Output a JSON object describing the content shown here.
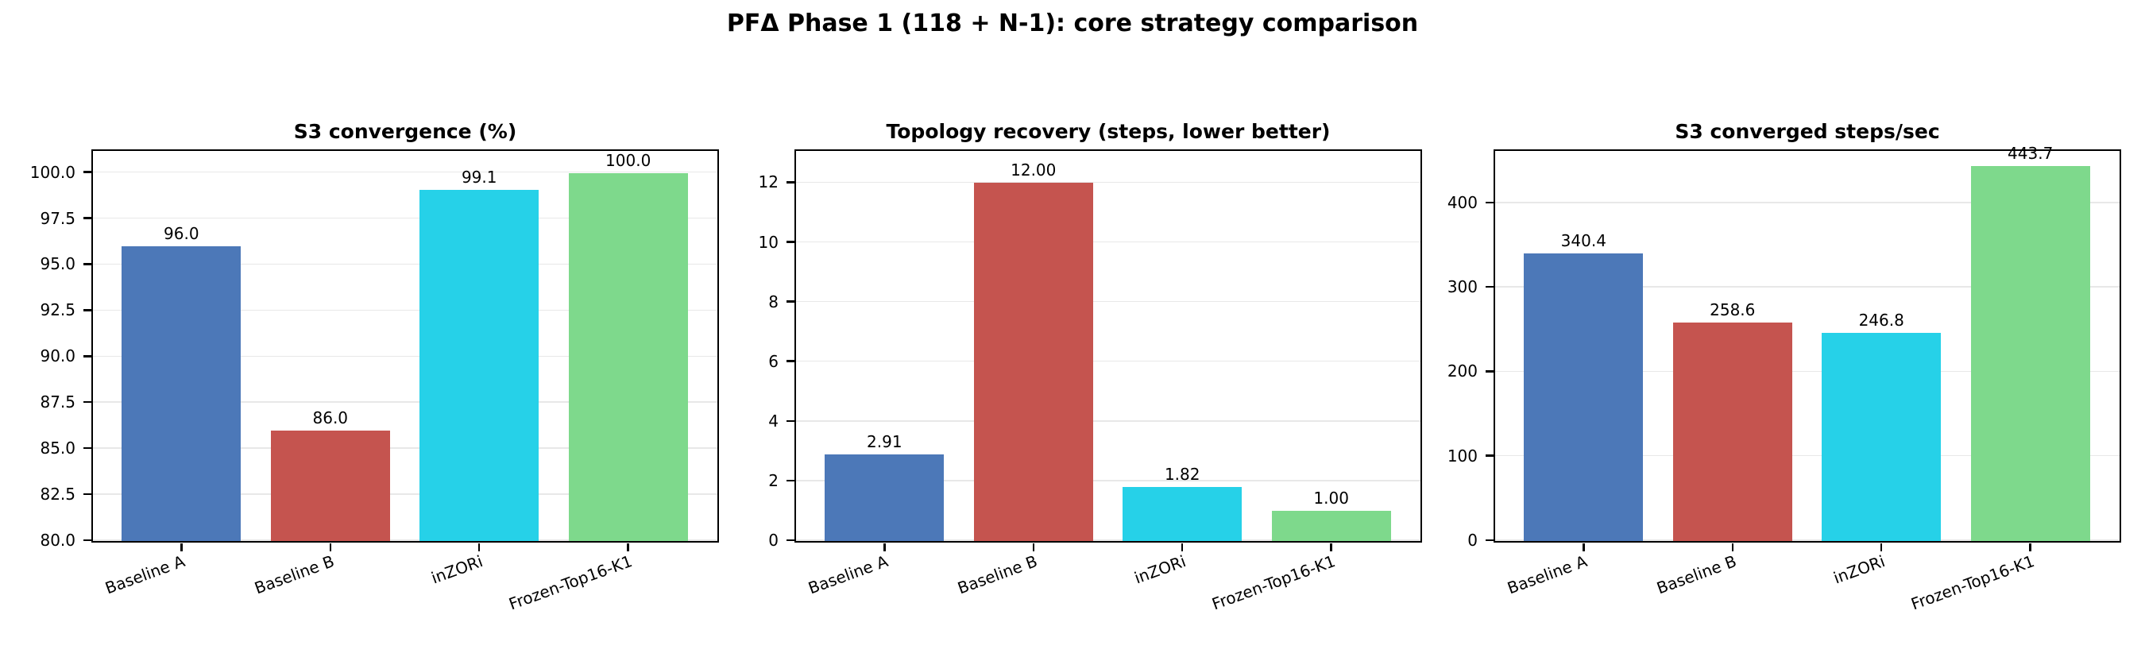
{
  "figure": {
    "title": "PFΔ Phase 1 (118 + N-1): core strategy comparison",
    "background_color": "#ffffff",
    "text_color": "#000000"
  },
  "style": {
    "bar_palette": [
      "#4C78B8",
      "#C5544F",
      "#26D1E8",
      "#7ED98C"
    ],
    "grid_color": "#e8e8e8",
    "spine_color": "#000000"
  },
  "chart_data": [
    {
      "type": "bar",
      "title": "S3 convergence (%)",
      "categories": [
        "Baseline A",
        "Baseline B",
        "inZORi",
        "Frozen-Top16-K1"
      ],
      "values": [
        96.0,
        86.0,
        99.1,
        100.0
      ],
      "bar_labels": [
        "96.0",
        "86.0",
        "99.1",
        "100.0"
      ],
      "bar_colors": [
        "#4C78B8",
        "#C5544F",
        "#26D1E8",
        "#7ED98C"
      ],
      "xlabel": "",
      "ylabel": "",
      "ylim": [
        80,
        101.15
      ],
      "yticks": [
        80.0,
        82.5,
        85.0,
        87.5,
        90.0,
        92.5,
        95.0,
        97.5,
        100.0
      ],
      "ytick_labels": [
        "80.0",
        "82.5",
        "85.0",
        "87.5",
        "90.0",
        "92.5",
        "95.0",
        "97.5",
        "100.0"
      ],
      "grid": true,
      "legend": null,
      "xtick_rotation_deg": 20
    },
    {
      "type": "bar",
      "title": "Topology recovery (steps, lower better)",
      "categories": [
        "Baseline A",
        "Baseline B",
        "inZORi",
        "Frozen-Top16-K1"
      ],
      "values": [
        2.91,
        12.0,
        1.82,
        1.0
      ],
      "bar_labels": [
        "2.91",
        "12.00",
        "1.82",
        "1.00"
      ],
      "bar_colors": [
        "#4C78B8",
        "#C5544F",
        "#26D1E8",
        "#7ED98C"
      ],
      "xlabel": "",
      "ylabel": "",
      "ylim": [
        0,
        13.05
      ],
      "yticks": [
        0,
        2,
        4,
        6,
        8,
        10,
        12
      ],
      "ytick_labels": [
        "0",
        "2",
        "4",
        "6",
        "8",
        "10",
        "12"
      ],
      "grid": true,
      "legend": null,
      "xtick_rotation_deg": 20
    },
    {
      "type": "bar",
      "title": "S3 converged steps/sec",
      "categories": [
        "Baseline A",
        "Baseline B",
        "inZORi",
        "Frozen-Top16-K1"
      ],
      "values": [
        340.4,
        258.6,
        246.8,
        443.7
      ],
      "bar_labels": [
        "340.4",
        "258.6",
        "246.8",
        "443.7"
      ],
      "bar_colors": [
        "#4C78B8",
        "#C5544F",
        "#26D1E8",
        "#7ED98C"
      ],
      "xlabel": "",
      "ylabel": "",
      "ylim": [
        0,
        461
      ],
      "yticks": [
        0,
        100,
        200,
        300,
        400
      ],
      "ytick_labels": [
        "0",
        "100",
        "200",
        "300",
        "400"
      ],
      "grid": true,
      "legend": null,
      "xtick_rotation_deg": 20
    }
  ]
}
